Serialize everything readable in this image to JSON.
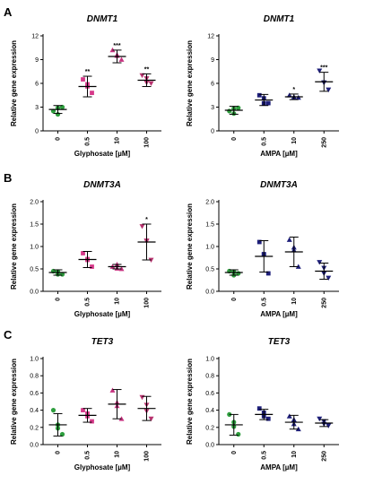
{
  "chart_data": [
    {
      "type": "scatter",
      "panel_label": "A",
      "title": "DNMT1",
      "xlabel": "Glyphosate [µM]",
      "ylabel": "Relative gene expression",
      "categories": [
        "0",
        "0.5",
        "10",
        "100"
      ],
      "ylim": [
        0,
        12
      ],
      "yticks": [
        "0",
        "3",
        "6",
        "9",
        "12"
      ],
      "marker_colors": [
        "#2e9e3e",
        "#d63a8a",
        "#c73380",
        "#b8336f"
      ],
      "marker_shapes": [
        "circle",
        "square",
        "triangle-up",
        "triangle-down"
      ],
      "groups": [
        {
          "points": [
            2.5,
            3.0,
            2.8,
            2.2
          ],
          "mean": 2.7,
          "sd": 0.5,
          "stars": ""
        },
        {
          "points": [
            6.5,
            4.8,
            5.5,
            6.0
          ],
          "mean": 5.6,
          "sd": 1.3,
          "stars": "**"
        },
        {
          "points": [
            10.2,
            9.0,
            9.5,
            9.6
          ],
          "mean": 9.4,
          "sd": 0.8,
          "stars": "***"
        },
        {
          "points": [
            7.0,
            6.0,
            6.5,
            6.2
          ],
          "mean": 6.4,
          "sd": 0.8,
          "stars": "**"
        }
      ]
    },
    {
      "type": "scatter",
      "title": "DNMT1",
      "xlabel": "AMPA [µM]",
      "ylabel": "Relative gene expression",
      "categories": [
        "0",
        "0.5",
        "10",
        "250"
      ],
      "ylim": [
        0,
        12
      ],
      "yticks": [
        "0",
        "3",
        "6",
        "9",
        "12"
      ],
      "marker_colors": [
        "#2e9e3e",
        "#1e1f7a",
        "#1e1f7a",
        "#1e1f7a"
      ],
      "marker_shapes": [
        "circle",
        "square",
        "triangle-up",
        "triangle-down"
      ],
      "groups": [
        {
          "points": [
            2.5,
            2.9,
            2.7,
            2.3
          ],
          "mean": 2.6,
          "sd": 0.5,
          "stars": ""
        },
        {
          "points": [
            4.5,
            3.5,
            4.0,
            3.6
          ],
          "mean": 3.9,
          "sd": 0.7,
          "stars": ""
        },
        {
          "points": [
            4.5,
            4.2,
            4.1,
            4.4
          ],
          "mean": 4.3,
          "sd": 0.35,
          "stars": "*"
        },
        {
          "points": [
            7.6,
            5.2,
            6.0,
            6.2
          ],
          "mean": 6.2,
          "sd": 1.2,
          "stars": "***"
        }
      ]
    },
    {
      "type": "scatter",
      "panel_label": "B",
      "title": "DNMT3A",
      "xlabel": "Glyphosate [µM]",
      "ylabel": "Relative gene expression",
      "categories": [
        "0",
        "0.5",
        "10",
        "100"
      ],
      "ylim": [
        0,
        2.0
      ],
      "yticks": [
        "0.0",
        "0.5",
        "1.0",
        "1.5",
        "2.0"
      ],
      "marker_colors": [
        "#2e9e3e",
        "#d63a8a",
        "#c73380",
        "#b8336f"
      ],
      "marker_shapes": [
        "circle",
        "square",
        "triangle-up",
        "triangle-down"
      ],
      "groups": [
        {
          "points": [
            0.45,
            0.38,
            0.42,
            0.4
          ],
          "mean": 0.42,
          "sd": 0.06,
          "stars": ""
        },
        {
          "points": [
            0.85,
            0.55,
            0.7,
            0.72
          ],
          "mean": 0.71,
          "sd": 0.18,
          "stars": ""
        },
        {
          "points": [
            0.55,
            0.5,
            0.58,
            0.53
          ],
          "mean": 0.55,
          "sd": 0.05,
          "stars": ""
        },
        {
          "points": [
            1.45,
            0.7,
            1.1,
            1.15
          ],
          "mean": 1.1,
          "sd": 0.4,
          "stars": "*"
        }
      ]
    },
    {
      "type": "scatter",
      "title": "DNMT3A",
      "xlabel": "AMPA [µM]",
      "ylabel": "Relative gene expression",
      "categories": [
        "0",
        "0.5",
        "10",
        "250"
      ],
      "ylim": [
        0,
        2.0
      ],
      "yticks": [
        "0.0",
        "0.5",
        "1.0",
        "1.5",
        "2.0"
      ],
      "marker_colors": [
        "#2e9e3e",
        "#1e1f7a",
        "#1e1f7a",
        "#1e1f7a"
      ],
      "marker_shapes": [
        "circle",
        "square",
        "triangle-up",
        "triangle-down"
      ],
      "groups": [
        {
          "points": [
            0.45,
            0.4,
            0.42,
            0.38
          ],
          "mean": 0.42,
          "sd": 0.06,
          "stars": ""
        },
        {
          "points": [
            1.1,
            0.4,
            0.8,
            0.85
          ],
          "mean": 0.78,
          "sd": 0.35,
          "stars": ""
        },
        {
          "points": [
            1.15,
            0.55,
            0.9,
            1.0
          ],
          "mean": 0.88,
          "sd": 0.33,
          "stars": ""
        },
        {
          "points": [
            0.65,
            0.3,
            0.5,
            0.42
          ],
          "mean": 0.45,
          "sd": 0.18,
          "stars": ""
        }
      ]
    },
    {
      "type": "scatter",
      "panel_label": "C",
      "title": "TET3",
      "xlabel": "Glyphosate [µM]",
      "ylabel": "Relative gene expression",
      "categories": [
        "0",
        "0.5",
        "10",
        "100"
      ],
      "ylim": [
        0,
        1.0
      ],
      "yticks": [
        "0.0",
        "0.2",
        "0.4",
        "0.6",
        "0.8",
        "1.0"
      ],
      "marker_colors": [
        "#2e9e3e",
        "#d63a8a",
        "#c73380",
        "#b8336f"
      ],
      "marker_shapes": [
        "circle",
        "square",
        "triangle-up",
        "triangle-down"
      ],
      "groups": [
        {
          "points": [
            0.4,
            0.12,
            0.22,
            0.2
          ],
          "mean": 0.23,
          "sd": 0.13,
          "stars": ""
        },
        {
          "points": [
            0.4,
            0.27,
            0.35,
            0.34
          ],
          "mean": 0.34,
          "sd": 0.08,
          "stars": ""
        },
        {
          "points": [
            0.63,
            0.3,
            0.48,
            0.46
          ],
          "mean": 0.47,
          "sd": 0.17,
          "stars": ""
        },
        {
          "points": [
            0.55,
            0.3,
            0.45,
            0.4
          ],
          "mean": 0.42,
          "sd": 0.14,
          "stars": ""
        }
      ]
    },
    {
      "type": "scatter",
      "title": "TET3",
      "xlabel": "AMPA [µM]",
      "ylabel": "Relative gene expression",
      "categories": [
        "0",
        "0.5",
        "10",
        "250"
      ],
      "ylim": [
        0,
        1.0
      ],
      "yticks": [
        "0.0",
        "0.2",
        "0.4",
        "0.6",
        "0.8",
        "1.0"
      ],
      "marker_colors": [
        "#2e9e3e",
        "#1e1f7a",
        "#1e1f7a",
        "#1e1f7a"
      ],
      "marker_shapes": [
        "circle",
        "square",
        "triangle-up",
        "triangle-down"
      ],
      "groups": [
        {
          "points": [
            0.35,
            0.12,
            0.25,
            0.22
          ],
          "mean": 0.23,
          "sd": 0.12,
          "stars": ""
        },
        {
          "points": [
            0.42,
            0.3,
            0.36,
            0.34
          ],
          "mean": 0.35,
          "sd": 0.06,
          "stars": ""
        },
        {
          "points": [
            0.33,
            0.18,
            0.28,
            0.25
          ],
          "mean": 0.26,
          "sd": 0.08,
          "stars": ""
        },
        {
          "points": [
            0.3,
            0.22,
            0.26,
            0.25
          ],
          "mean": 0.25,
          "sd": 0.04,
          "stars": ""
        }
      ]
    }
  ]
}
